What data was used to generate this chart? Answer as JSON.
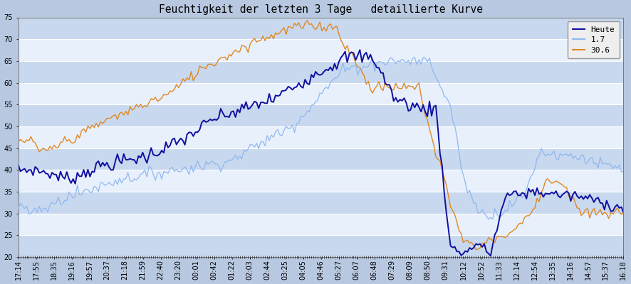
{
  "title": "Feuchtigkeit der letzten 3 Tage   detaillierte Kurve",
  "ylim": [
    20,
    75
  ],
  "yticks": [
    20,
    25,
    30,
    35,
    40,
    45,
    50,
    55,
    60,
    65,
    70,
    75
  ],
  "fig_bg_color": "#b8c8e0",
  "plot_bg_color": "#dde8f8",
  "stripe_color_dark": "#c8d8ee",
  "stripe_color_light": "#e8f0fc",
  "legend_labels": [
    "Heute",
    "1.7",
    "30.6"
  ],
  "heute_color": "#1010a0",
  "tag17_color": "#90b8f0",
  "tag306_color": "#e08820",
  "title_fontsize": 10.5,
  "tick_fontsize": 7,
  "n_points": 288,
  "xtick_labels": [
    "17:14",
    "17:55",
    "18:35",
    "19:16",
    "19:57",
    "20:37",
    "21:18",
    "21:59",
    "22:40",
    "23:20",
    "00:01",
    "00:42",
    "01:22",
    "02:03",
    "02:44",
    "03:25",
    "04:05",
    "04:46",
    "05:27",
    "06:07",
    "06:48",
    "07:29",
    "08:09",
    "08:50",
    "09:31",
    "10:12",
    "10:52",
    "11:33",
    "12:14",
    "12:54",
    "13:35",
    "14:16",
    "14:57",
    "15:37",
    "16:18"
  ]
}
